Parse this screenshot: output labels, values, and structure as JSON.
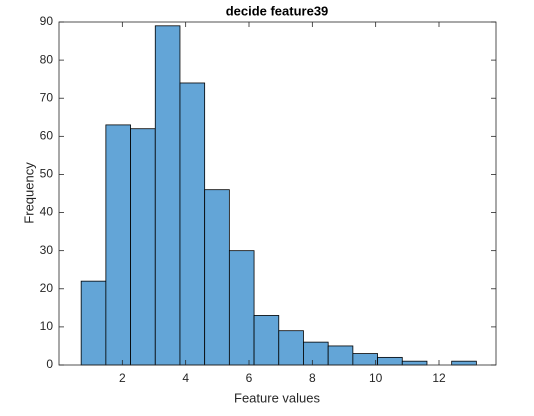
{
  "chart_data": {
    "type": "histogram",
    "title": "decide feature39",
    "xlabel": "Feature values",
    "ylabel": "Frequency",
    "bins": [
      0.7,
      1.48,
      2.26,
      3.04,
      3.82,
      4.6,
      5.38,
      6.16,
      6.94,
      7.72,
      8.5,
      9.28,
      10.06,
      10.84,
      11.62,
      12.4,
      13.18
    ],
    "values": [
      22,
      63,
      62,
      89,
      74,
      46,
      30,
      13,
      9,
      6,
      5,
      3,
      2,
      1,
      0,
      1
    ],
    "color": "#63a5d7",
    "edgecolor": "#000000",
    "xlim": [
      0,
      13.8
    ],
    "ylim": [
      0,
      90
    ],
    "xticks": [
      2,
      4,
      6,
      8,
      10,
      12
    ],
    "yticks": [
      0,
      10,
      20,
      30,
      40,
      50,
      60,
      70,
      80,
      90
    ]
  }
}
